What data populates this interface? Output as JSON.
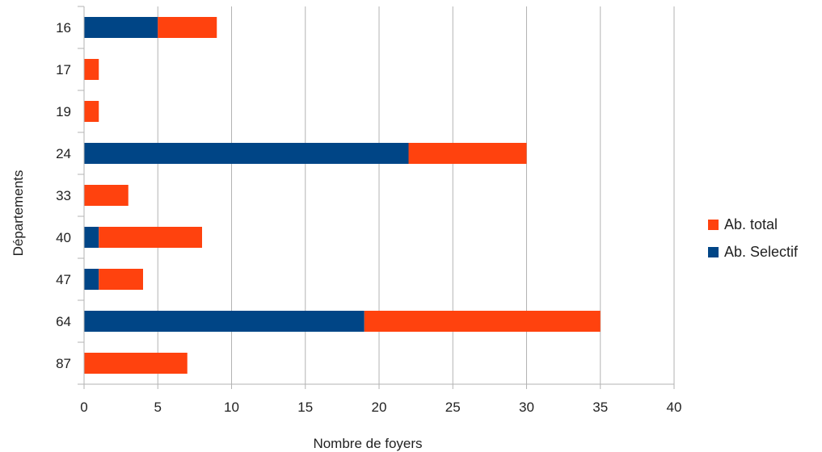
{
  "chart_data": {
    "type": "bar",
    "orientation": "horizontal",
    "stacked": true,
    "categories": [
      "16",
      "17",
      "19",
      "24",
      "33",
      "40",
      "47",
      "64",
      "87"
    ],
    "series": [
      {
        "name": "Ab. Selectif",
        "values": [
          5,
          0,
          0,
          22,
          0,
          1,
          1,
          19,
          0
        ],
        "color": "#004586"
      },
      {
        "name": "Ab. total",
        "values": [
          4,
          1,
          1,
          8,
          3,
          7,
          3,
          16,
          7
        ],
        "color": "#ff420e"
      }
    ],
    "xlabel": "Nombre de foyers",
    "ylabel": "Départements",
    "xlim": [
      0,
      40
    ],
    "xticks": [
      0,
      5,
      10,
      15,
      20,
      25,
      30,
      35,
      40
    ],
    "grid": true,
    "legend_position": "right",
    "legend_order": [
      "Ab. total",
      "Ab. Selectif"
    ]
  }
}
